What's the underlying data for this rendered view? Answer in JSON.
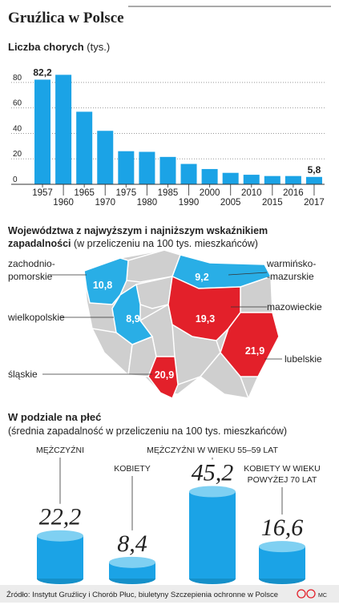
{
  "title": "Gruźlica w Polsce",
  "source": "Źródło: Instytut Gruźlicy i Chorób Płuc, biuletyny Szczepienia ochronne w Polsce",
  "credit": "MC",
  "chart_data": [
    {
      "type": "bar",
      "title": "Liczba chorych",
      "unit": "(tys.)",
      "categories": [
        "1957",
        "1960",
        "1965",
        "1970",
        "1975",
        "1980",
        "1985",
        "1990",
        "2000",
        "2005",
        "2010",
        "2015",
        "2016",
        "2017"
      ],
      "values": [
        82.2,
        86,
        57,
        42,
        26,
        25.5,
        21.5,
        16,
        12,
        9,
        7.5,
        6.5,
        6.5,
        5.8
      ],
      "value_labels": [
        "82,2",
        null,
        null,
        null,
        null,
        null,
        null,
        null,
        null,
        null,
        null,
        null,
        null,
        "5,8"
      ],
      "color": "#1ba3e6",
      "ylim": [
        0,
        90
      ],
      "yticks": [
        0,
        20,
        40,
        60,
        80
      ],
      "grid": true
    },
    {
      "type": "map",
      "title_lines": [
        "Województwa z najwyższym i najniższym wskaźnikiem",
        "zapadalności"
      ],
      "subtitle": "(w przeliczeniu na 100 tys. mieszkańców)",
      "regions": [
        {
          "name_lines": [
            "zachodnio-",
            "pomorskie"
          ],
          "value": 10.8,
          "value_label": "10,8",
          "color": "#29aee6"
        },
        {
          "name_lines": [
            "warmińsko-",
            "-mazurskie"
          ],
          "value": 9.2,
          "value_label": "9,2",
          "color": "#29aee6"
        },
        {
          "name_lines": [
            "wielkopolskie"
          ],
          "value": 8.9,
          "value_label": "8,9",
          "color": "#29aee6"
        },
        {
          "name_lines": [
            "mazowieckie"
          ],
          "value": 19.3,
          "value_label": "19,3",
          "color": "#e3202a"
        },
        {
          "name_lines": [
            "lubelskie"
          ],
          "value": 21.9,
          "value_label": "21,9",
          "color": "#e3202a"
        },
        {
          "name_lines": [
            "śląskie"
          ],
          "value": 20.9,
          "value_label": "20,9",
          "color": "#e3202a"
        }
      ]
    },
    {
      "type": "cylinder",
      "title": "W podziale na płeć",
      "subtitle": "(średnia zapadalność w przeliczeniu na 100 tys. mieszkańców)",
      "categories": [
        [
          "MĘŻCZYŹNI"
        ],
        [
          "KOBIETY"
        ],
        [
          "MĘŻCZYŹNI W WIEKU 55–59 LAT"
        ],
        [
          "KOBIETY W WIEKU",
          "POWYŻEJ 70 LAT"
        ]
      ],
      "values": [
        22.2,
        8.4,
        45.2,
        16.6
      ],
      "value_labels": [
        "22,2",
        "8,4",
        "45,2",
        "16,6"
      ],
      "color": "#1ba3e6"
    }
  ]
}
